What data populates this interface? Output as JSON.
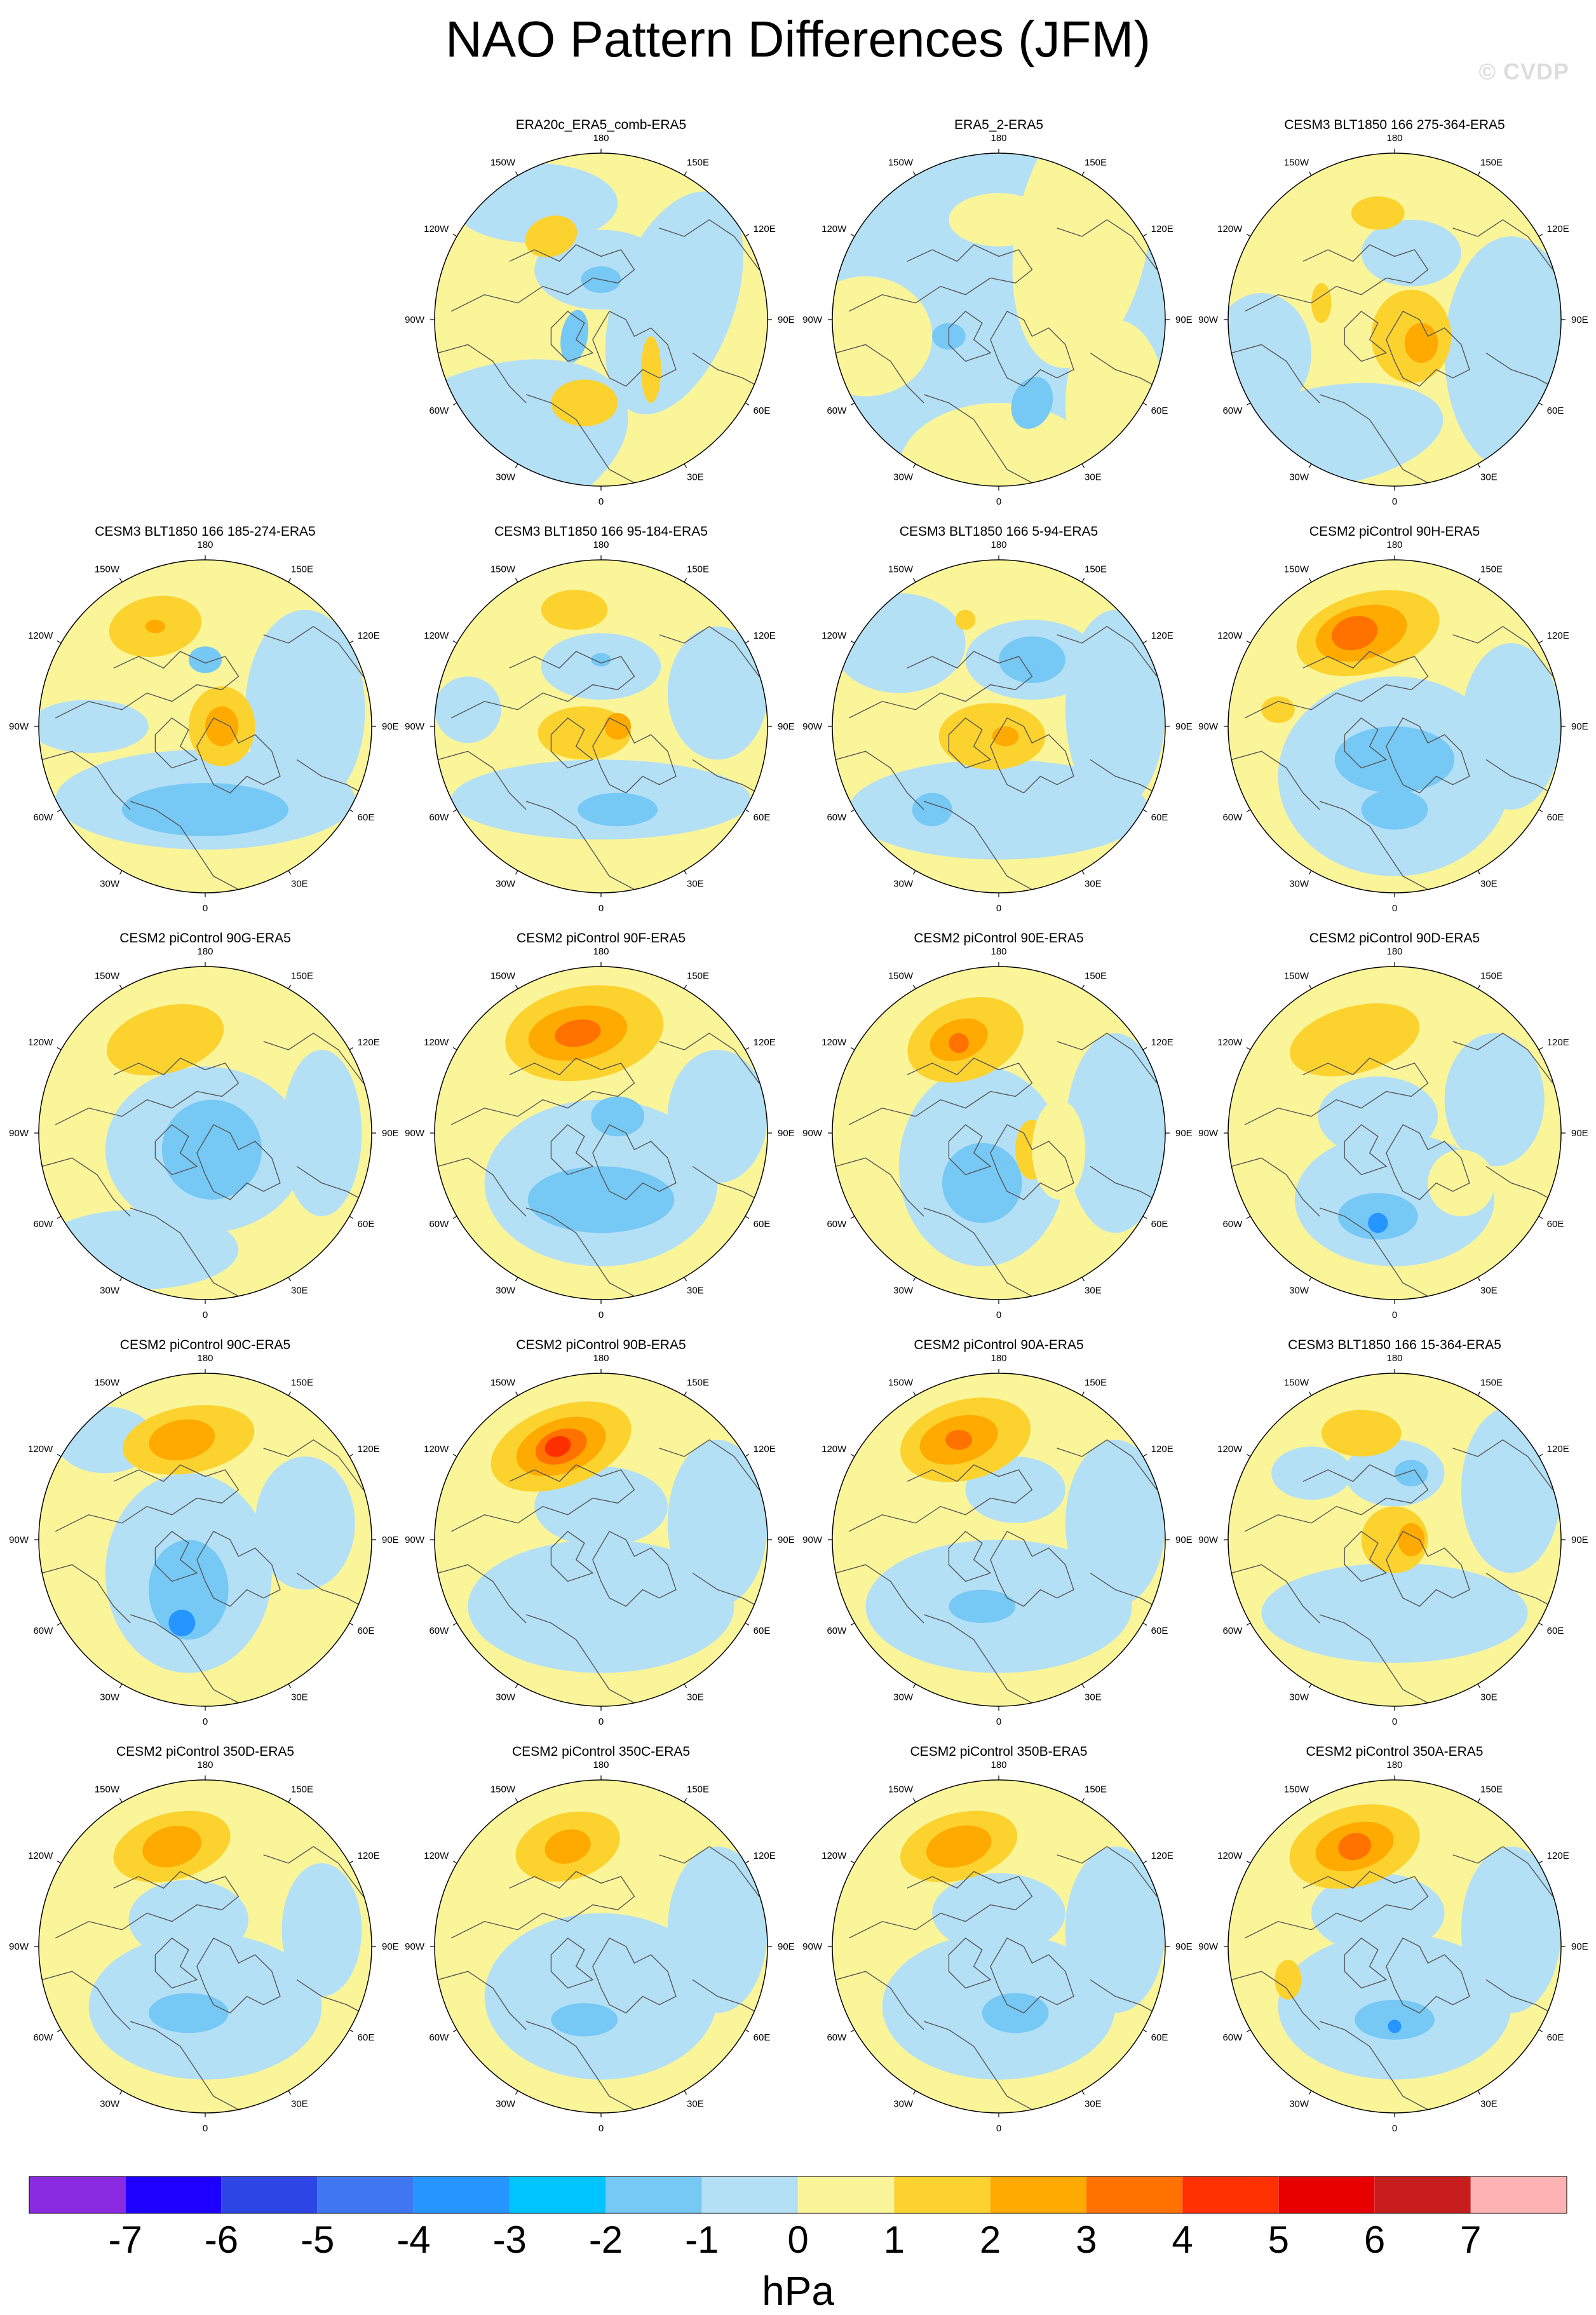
{
  "title": "NAO Pattern Differences (JFM)",
  "watermark": "© CVDP",
  "units": "hPa",
  "lon_labels": [
    "180",
    "150E",
    "120E",
    "90E",
    "60E",
    "30E",
    "0",
    "30W",
    "60W",
    "90W",
    "120W",
    "150W"
  ],
  "colorbar": {
    "colors": [
      "#8a2be2",
      "#1e00ff",
      "#2e45e6",
      "#3f77f0",
      "#2595ff",
      "#00c4ff",
      "#76c8f5",
      "#b4e0f6",
      "#fbf59a",
      "#fcd22e",
      "#ffaa00",
      "#ff7200",
      "#ff3000",
      "#e80000",
      "#c81d1d",
      "#fdb3b3"
    ],
    "ticks": [
      "-7",
      "-6",
      "-5",
      "-4",
      "-3",
      "-2",
      "-1",
      "0",
      "1",
      "2",
      "3",
      "4",
      "5",
      "6",
      "7"
    ]
  },
  "panels": [
    {
      "title": "ERA20c_ERA5_comb-ERA5",
      "row": 0,
      "col": 1,
      "base": "#fbf59a",
      "blobs": [
        [
          "#b4e0f6",
          0.3,
          0.15,
          0.25,
          0.12,
          0
        ],
        [
          "#b4e0f6",
          0.72,
          0.45,
          0.18,
          0.35,
          20
        ],
        [
          "#b4e0f6",
          0.15,
          0.9,
          0.45,
          0.25,
          -20
        ],
        [
          "#b4e0f6",
          0.5,
          0.35,
          0.2,
          0.12,
          0
        ],
        [
          "#fcd22e",
          0.35,
          0.25,
          0.08,
          0.06,
          -20
        ],
        [
          "#fcd22e",
          0.45,
          0.75,
          0.1,
          0.07,
          0
        ],
        [
          "#fcd22e",
          0.65,
          0.65,
          0.03,
          0.1,
          0
        ],
        [
          "#76c8f5",
          0.5,
          0.38,
          0.06,
          0.04,
          0
        ],
        [
          "#76c8f5",
          0.42,
          0.55,
          0.04,
          0.08,
          10
        ]
      ]
    },
    {
      "title": "ERA5_2-ERA5",
      "row": 0,
      "col": 2,
      "base": "#b4e0f6",
      "blobs": [
        [
          "#fbf59a",
          0.75,
          0.25,
          0.2,
          0.4,
          10
        ],
        [
          "#fbf59a",
          0.5,
          0.2,
          0.15,
          0.08,
          0
        ],
        [
          "#fbf59a",
          0.1,
          0.55,
          0.2,
          0.18,
          0
        ],
        [
          "#fbf59a",
          0.5,
          0.95,
          0.3,
          0.2,
          0
        ],
        [
          "#fbf59a",
          0.85,
          0.75,
          0.15,
          0.25,
          0
        ],
        [
          "#76c8f5",
          0.6,
          0.75,
          0.06,
          0.08,
          20
        ],
        [
          "#76c8f5",
          0.35,
          0.55,
          0.05,
          0.04,
          0
        ]
      ]
    },
    {
      "title": "CESM3 BLT1850 166 275-364-ERA5",
      "row": 0,
      "col": 3,
      "base": "#fbf59a",
      "blobs": [
        [
          "#b4e0f6",
          0.3,
          0.85,
          0.35,
          0.15,
          -10
        ],
        [
          "#b4e0f6",
          0.85,
          0.6,
          0.2,
          0.35,
          0
        ],
        [
          "#b4e0f6",
          0.55,
          0.3,
          0.15,
          0.1,
          0
        ],
        [
          "#b4e0f6",
          0.1,
          0.6,
          0.15,
          0.18,
          0
        ],
        [
          "#fcd22e",
          0.45,
          0.18,
          0.08,
          0.05,
          0
        ],
        [
          "#fcd22e",
          0.55,
          0.55,
          0.12,
          0.14,
          0
        ],
        [
          "#ffaa00",
          0.58,
          0.57,
          0.05,
          0.06,
          0
        ],
        [
          "#fcd22e",
          0.28,
          0.45,
          0.03,
          0.06,
          0
        ]
      ]
    },
    {
      "title": "CESM3 BLT1850 166 185-274-ERA5",
      "row": 1,
      "col": 0,
      "base": "#fbf59a",
      "blobs": [
        [
          "#b4e0f6",
          0.5,
          0.72,
          0.45,
          0.15,
          0
        ],
        [
          "#b4e0f6",
          0.8,
          0.45,
          0.18,
          0.3,
          0
        ],
        [
          "#b4e0f6",
          0.15,
          0.5,
          0.18,
          0.08,
          0
        ],
        [
          "#76c8f5",
          0.5,
          0.75,
          0.25,
          0.08,
          0
        ],
        [
          "#fcd22e",
          0.35,
          0.2,
          0.14,
          0.09,
          -10
        ],
        [
          "#ffaa00",
          0.35,
          0.2,
          0.03,
          0.02,
          0
        ],
        [
          "#fcd22e",
          0.55,
          0.5,
          0.1,
          0.12,
          0
        ],
        [
          "#ffaa00",
          0.55,
          0.5,
          0.05,
          0.06,
          0
        ],
        [
          "#76c8f5",
          0.5,
          0.3,
          0.05,
          0.04,
          0
        ]
      ]
    },
    {
      "title": "CESM3 BLT1850 166 95-184-ERA5",
      "row": 1,
      "col": 1,
      "base": "#fbf59a",
      "blobs": [
        [
          "#b4e0f6",
          0.5,
          0.72,
          0.45,
          0.12,
          0
        ],
        [
          "#b4e0f6",
          0.1,
          0.45,
          0.1,
          0.1,
          0
        ],
        [
          "#b4e0f6",
          0.85,
          0.4,
          0.15,
          0.2,
          0
        ],
        [
          "#b4e0f6",
          0.5,
          0.32,
          0.18,
          0.1,
          0
        ],
        [
          "#76c8f5",
          0.55,
          0.75,
          0.12,
          0.05,
          0
        ],
        [
          "#fcd22e",
          0.42,
          0.15,
          0.1,
          0.06,
          0
        ],
        [
          "#fcd22e",
          0.45,
          0.52,
          0.14,
          0.08,
          0
        ],
        [
          "#ffaa00",
          0.55,
          0.5,
          0.04,
          0.04,
          0
        ],
        [
          "#76c8f5",
          0.5,
          0.3,
          0.03,
          0.02,
          0
        ]
      ]
    },
    {
      "title": "CESM3 BLT1850 166 5-94-ERA5",
      "row": 1,
      "col": 2,
      "base": "#fbf59a",
      "blobs": [
        [
          "#b4e0f6",
          0.5,
          0.75,
          0.45,
          0.15,
          0
        ],
        [
          "#b4e0f6",
          0.85,
          0.45,
          0.15,
          0.3,
          0
        ],
        [
          "#b4e0f6",
          0.2,
          0.25,
          0.2,
          0.15,
          0
        ],
        [
          "#b4e0f6",
          0.6,
          0.3,
          0.2,
          0.12,
          0
        ],
        [
          "#76c8f5",
          0.6,
          0.3,
          0.1,
          0.07,
          0
        ],
        [
          "#76c8f5",
          0.3,
          0.75,
          0.06,
          0.05,
          0
        ],
        [
          "#fcd22e",
          0.48,
          0.53,
          0.16,
          0.1,
          0
        ],
        [
          "#ffaa00",
          0.52,
          0.53,
          0.04,
          0.03,
          0
        ],
        [
          "#fcd22e",
          0.4,
          0.18,
          0.03,
          0.03,
          0
        ]
      ]
    },
    {
      "title": "CESM2 piControl 90H-ERA5",
      "row": 1,
      "col": 3,
      "base": "#fbf59a",
      "blobs": [
        [
          "#b4e0f6",
          0.5,
          0.65,
          0.35,
          0.3,
          0
        ],
        [
          "#b4e0f6",
          0.85,
          0.5,
          0.15,
          0.25,
          0
        ],
        [
          "#76c8f5",
          0.5,
          0.6,
          0.18,
          0.1,
          0
        ],
        [
          "#76c8f5",
          0.5,
          0.75,
          0.1,
          0.06,
          0
        ],
        [
          "#fcd22e",
          0.42,
          0.22,
          0.22,
          0.12,
          -15
        ],
        [
          "#ffaa00",
          0.4,
          0.22,
          0.14,
          0.08,
          -15
        ],
        [
          "#ff7200",
          0.38,
          0.22,
          0.07,
          0.05,
          -15
        ],
        [
          "#fcd22e",
          0.15,
          0.45,
          0.05,
          0.04,
          0
        ]
      ]
    },
    {
      "title": "CESM2 piControl 90G-ERA5",
      "row": 2,
      "col": 0,
      "base": "#fbf59a",
      "blobs": [
        [
          "#b4e0f6",
          0.5,
          0.55,
          0.3,
          0.25,
          0
        ],
        [
          "#b4e0f6",
          0.85,
          0.5,
          0.12,
          0.25,
          0
        ],
        [
          "#b4e0f6",
          0.3,
          0.85,
          0.3,
          0.12,
          0
        ],
        [
          "#76c8f5",
          0.52,
          0.55,
          0.15,
          0.15,
          0
        ],
        [
          "#fcd22e",
          0.38,
          0.22,
          0.18,
          0.1,
          -15
        ]
      ]
    },
    {
      "title": "CESM2 piControl 90F-ERA5",
      "row": 2,
      "col": 1,
      "base": "#fbf59a",
      "blobs": [
        [
          "#b4e0f6",
          0.5,
          0.65,
          0.35,
          0.25,
          0
        ],
        [
          "#b4e0f6",
          0.85,
          0.45,
          0.15,
          0.2,
          0
        ],
        [
          "#76c8f5",
          0.5,
          0.7,
          0.22,
          0.1,
          0
        ],
        [
          "#76c8f5",
          0.55,
          0.45,
          0.08,
          0.06,
          0
        ],
        [
          "#fcd22e",
          0.45,
          0.2,
          0.24,
          0.14,
          -10
        ],
        [
          "#ffaa00",
          0.43,
          0.2,
          0.15,
          0.08,
          -10
        ],
        [
          "#ff7200",
          0.43,
          0.2,
          0.07,
          0.04,
          -10
        ]
      ]
    },
    {
      "title": "CESM2 piControl 90E-ERA5",
      "row": 2,
      "col": 2,
      "base": "#fbf59a",
      "blobs": [
        [
          "#b4e0f6",
          0.45,
          0.6,
          0.25,
          0.3,
          0
        ],
        [
          "#b4e0f6",
          0.85,
          0.5,
          0.15,
          0.3,
          0
        ],
        [
          "#76c8f5",
          0.45,
          0.65,
          0.12,
          0.12,
          0
        ],
        [
          "#fcd22e",
          0.4,
          0.22,
          0.18,
          0.12,
          -20
        ],
        [
          "#ffaa00",
          0.38,
          0.22,
          0.09,
          0.06,
          -20
        ],
        [
          "#ff7200",
          0.38,
          0.23,
          0.03,
          0.03,
          0
        ],
        [
          "#fcd22e",
          0.6,
          0.55,
          0.05,
          0.09,
          0
        ],
        [
          "#fbf59a",
          0.68,
          0.55,
          0.08,
          0.15,
          0
        ]
      ]
    },
    {
      "title": "CESM2 piControl 90D-ERA5",
      "row": 2,
      "col": 3,
      "base": "#fbf59a",
      "blobs": [
        [
          "#b4e0f6",
          0.5,
          0.7,
          0.3,
          0.2,
          0
        ],
        [
          "#b4e0f6",
          0.8,
          0.4,
          0.15,
          0.2,
          0
        ],
        [
          "#b4e0f6",
          0.45,
          0.45,
          0.18,
          0.12,
          0
        ],
        [
          "#76c8f5",
          0.45,
          0.75,
          0.12,
          0.07,
          0
        ],
        [
          "#2595ff",
          0.45,
          0.77,
          0.03,
          0.03,
          0
        ],
        [
          "#fcd22e",
          0.38,
          0.22,
          0.2,
          0.1,
          -15
        ],
        [
          "#fbf59a",
          0.7,
          0.65,
          0.1,
          0.1,
          0
        ]
      ]
    },
    {
      "title": "CESM2 piControl 90C-ERA5",
      "row": 3,
      "col": 0,
      "base": "#fbf59a",
      "blobs": [
        [
          "#b4e0f6",
          0.45,
          0.6,
          0.25,
          0.3,
          0
        ],
        [
          "#b4e0f6",
          0.8,
          0.45,
          0.15,
          0.2,
          0
        ],
        [
          "#b4e0f6",
          0.2,
          0.2,
          0.15,
          0.1,
          0
        ],
        [
          "#76c8f5",
          0.45,
          0.65,
          0.12,
          0.15,
          0
        ],
        [
          "#2595ff",
          0.43,
          0.75,
          0.04,
          0.04,
          0
        ],
        [
          "#fcd22e",
          0.45,
          0.2,
          0.2,
          0.1,
          -10
        ],
        [
          "#ffaa00",
          0.43,
          0.2,
          0.1,
          0.06,
          -10
        ]
      ]
    },
    {
      "title": "CESM2 piControl 90B-ERA5",
      "row": 3,
      "col": 1,
      "base": "#fbf59a",
      "blobs": [
        [
          "#b4e0f6",
          0.5,
          0.7,
          0.4,
          0.2,
          0
        ],
        [
          "#b4e0f6",
          0.85,
          0.45,
          0.15,
          0.25,
          0
        ],
        [
          "#b4e0f6",
          0.5,
          0.4,
          0.2,
          0.12,
          0
        ],
        [
          "#fcd22e",
          0.38,
          0.22,
          0.22,
          0.12,
          -20
        ],
        [
          "#ffaa00",
          0.38,
          0.22,
          0.14,
          0.08,
          -20
        ],
        [
          "#ff7200",
          0.38,
          0.22,
          0.08,
          0.05,
          -20
        ],
        [
          "#ff3000",
          0.37,
          0.22,
          0.04,
          0.03,
          -20
        ]
      ]
    },
    {
      "title": "CESM2 piControl 90A-ERA5",
      "row": 3,
      "col": 2,
      "base": "#fbf59a",
      "blobs": [
        [
          "#b4e0f6",
          0.5,
          0.7,
          0.4,
          0.2,
          0
        ],
        [
          "#b4e0f6",
          0.85,
          0.45,
          0.15,
          0.25,
          0
        ],
        [
          "#b4e0f6",
          0.55,
          0.35,
          0.15,
          0.1,
          0
        ],
        [
          "#76c8f5",
          0.45,
          0.7,
          0.1,
          0.05,
          0
        ],
        [
          "#fcd22e",
          0.4,
          0.2,
          0.2,
          0.12,
          -15
        ],
        [
          "#ffaa00",
          0.38,
          0.2,
          0.12,
          0.07,
          -15
        ],
        [
          "#ff7200",
          0.38,
          0.2,
          0.04,
          0.03,
          0
        ]
      ]
    },
    {
      "title": "CESM3 BLT1850 166 15-364-ERA5",
      "row": 3,
      "col": 3,
      "base": "#fbf59a",
      "blobs": [
        [
          "#b4e0f6",
          0.5,
          0.72,
          0.4,
          0.15,
          0
        ],
        [
          "#b4e0f6",
          0.85,
          0.35,
          0.15,
          0.25,
          0
        ],
        [
          "#b4e0f6",
          0.5,
          0.3,
          0.15,
          0.1,
          0
        ],
        [
          "#b4e0f6",
          0.25,
          0.3,
          0.12,
          0.08,
          0
        ],
        [
          "#76c8f5",
          0.55,
          0.3,
          0.05,
          0.04,
          0
        ],
        [
          "#fcd22e",
          0.4,
          0.18,
          0.12,
          0.07,
          0
        ],
        [
          "#fcd22e",
          0.5,
          0.5,
          0.1,
          0.1,
          0
        ],
        [
          "#ffaa00",
          0.55,
          0.5,
          0.04,
          0.05,
          0
        ]
      ]
    },
    {
      "title": "CESM2 piControl 350D-ERA5",
      "row": 4,
      "col": 0,
      "base": "#fbf59a",
      "blobs": [
        [
          "#b4e0f6",
          0.5,
          0.68,
          0.35,
          0.22,
          0
        ],
        [
          "#b4e0f6",
          0.85,
          0.45,
          0.12,
          0.2,
          0
        ],
        [
          "#b4e0f6",
          0.45,
          0.42,
          0.18,
          0.12,
          0
        ],
        [
          "#76c8f5",
          0.45,
          0.7,
          0.12,
          0.06,
          0
        ],
        [
          "#fcd22e",
          0.4,
          0.2,
          0.18,
          0.1,
          -15
        ],
        [
          "#ffaa00",
          0.4,
          0.2,
          0.09,
          0.06,
          -15
        ]
      ]
    },
    {
      "title": "CESM2 piControl 350C-ERA5",
      "row": 4,
      "col": 1,
      "base": "#fbf59a",
      "blobs": [
        [
          "#b4e0f6",
          0.5,
          0.65,
          0.35,
          0.25,
          0
        ],
        [
          "#b4e0f6",
          0.85,
          0.45,
          0.15,
          0.25,
          0
        ],
        [
          "#76c8f5",
          0.45,
          0.72,
          0.1,
          0.05,
          0
        ],
        [
          "#fcd22e",
          0.4,
          0.2,
          0.16,
          0.1,
          -15
        ],
        [
          "#ffaa00",
          0.4,
          0.2,
          0.07,
          0.05,
          -15
        ]
      ]
    },
    {
      "title": "CESM2 piControl 350B-ERA5",
      "row": 4,
      "col": 2,
      "base": "#fbf59a",
      "blobs": [
        [
          "#b4e0f6",
          0.5,
          0.68,
          0.35,
          0.22,
          0
        ],
        [
          "#b4e0f6",
          0.85,
          0.45,
          0.15,
          0.25,
          0
        ],
        [
          "#b4e0f6",
          0.5,
          0.4,
          0.2,
          0.12,
          0
        ],
        [
          "#76c8f5",
          0.55,
          0.7,
          0.1,
          0.06,
          0
        ],
        [
          "#fcd22e",
          0.38,
          0.2,
          0.18,
          0.1,
          -15
        ],
        [
          "#ffaa00",
          0.38,
          0.2,
          0.1,
          0.06,
          -15
        ]
      ]
    },
    {
      "title": "CESM2 piControl 350A-ERA5",
      "row": 4,
      "col": 3,
      "base": "#fbf59a",
      "blobs": [
        [
          "#b4e0f6",
          0.5,
          0.68,
          0.35,
          0.22,
          0
        ],
        [
          "#b4e0f6",
          0.85,
          0.45,
          0.15,
          0.25,
          0
        ],
        [
          "#b4e0f6",
          0.45,
          0.4,
          0.2,
          0.12,
          0
        ],
        [
          "#76c8f5",
          0.5,
          0.72,
          0.12,
          0.06,
          0
        ],
        [
          "#2595ff",
          0.5,
          0.74,
          0.02,
          0.02,
          0
        ],
        [
          "#fcd22e",
          0.38,
          0.2,
          0.2,
          0.12,
          -15
        ],
        [
          "#ffaa00",
          0.38,
          0.2,
          0.12,
          0.07,
          -15
        ],
        [
          "#ff7200",
          0.38,
          0.2,
          0.05,
          0.04,
          -15
        ],
        [
          "#fcd22e",
          0.18,
          0.6,
          0.04,
          0.06,
          0
        ]
      ]
    }
  ]
}
